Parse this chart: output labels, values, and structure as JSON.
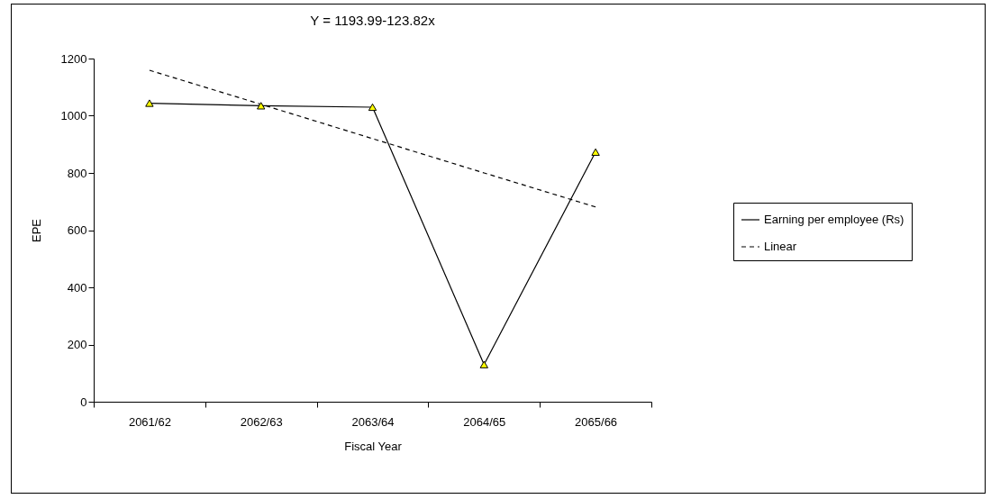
{
  "chart_data": {
    "type": "line",
    "title": "Y = 1193.99-123.82x",
    "xlabel": "Fiscal Year",
    "ylabel": "EPE",
    "categories": [
      "2061/62",
      "2062/63",
      "2063/64",
      "2064/65",
      "2065/66"
    ],
    "series": [
      {
        "name": "Earning per employee (Rs)",
        "color": "#000000",
        "marker": "triangle",
        "values": [
          1044,
          1035,
          1030,
          130,
          873
        ]
      },
      {
        "name": "Linear",
        "type": "line",
        "color": "#000000",
        "marker": "none",
        "line_style": "dashed",
        "values": [
          1159,
          1040,
          920,
          800,
          681
        ]
      }
    ],
    "ylim": [
      0,
      1200
    ],
    "yticks": [
      0,
      200,
      400,
      600,
      800,
      1000,
      1200
    ],
    "legend": "right"
  }
}
